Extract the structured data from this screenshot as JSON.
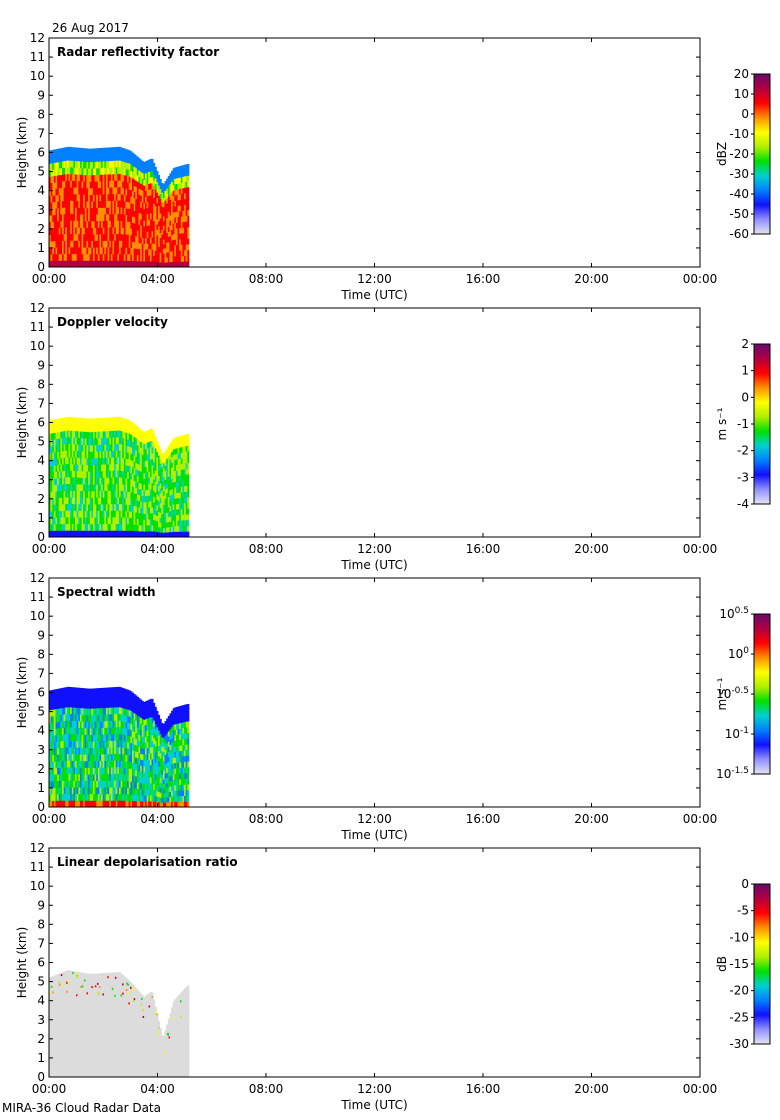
{
  "header": {
    "date": "26 Aug 2017"
  },
  "footer": {
    "caption": "MIRA-36 Cloud Radar Data"
  },
  "colors": {
    "colormap": [
      "#e4e4f2",
      "#9090ff",
      "#1010ff",
      "#0080ff",
      "#00d0d0",
      "#00e000",
      "#b0f000",
      "#ffff00",
      "#ff9000",
      "#ff0000",
      "#b00040",
      "#6a0a6a"
    ],
    "lowest_bin": "#dcdcdc"
  },
  "chart_data": [
    {
      "type": "heatmap",
      "title": "Radar reflectivity factor",
      "xlabel": "Time (UTC)",
      "ylabel": "Height (km)",
      "xlim": [
        0,
        24
      ],
      "ylim": [
        0,
        12
      ],
      "xticks": [
        "00:00",
        "04:00",
        "08:00",
        "12:00",
        "16:00",
        "20:00",
        "00:00"
      ],
      "yticks": [
        "0",
        "1",
        "2",
        "3",
        "4",
        "5",
        "6",
        "7",
        "8",
        "9",
        "10",
        "11",
        "12"
      ],
      "data_end_hour": 5.1,
      "cloud_top_km": [
        [
          0,
          6.1
        ],
        [
          0.7,
          6.3
        ],
        [
          1.5,
          6.2
        ],
        [
          2.6,
          6.3
        ],
        [
          3.0,
          6.1
        ],
        [
          3.5,
          5.5
        ],
        [
          3.8,
          5.7
        ],
        [
          4.2,
          4.3
        ],
        [
          4.6,
          5.2
        ],
        [
          5.1,
          5.4
        ]
      ],
      "colorbar": {
        "label": "dBZ",
        "ticks": [
          "20",
          "10",
          "0",
          "-10",
          "-20",
          "-30",
          "-40",
          "-50",
          "-60"
        ]
      }
    },
    {
      "type": "heatmap",
      "title": "Doppler velocity",
      "xlabel": "Time (UTC)",
      "ylabel": "Height (km)",
      "xlim": [
        0,
        24
      ],
      "ylim": [
        0,
        12
      ],
      "xticks": [
        "00:00",
        "04:00",
        "08:00",
        "12:00",
        "16:00",
        "20:00",
        "00:00"
      ],
      "yticks": [
        "0",
        "1",
        "2",
        "3",
        "4",
        "5",
        "6",
        "7",
        "8",
        "9",
        "10",
        "11",
        "12"
      ],
      "data_end_hour": 5.1,
      "cloud_top_km": [
        [
          0,
          6.1
        ],
        [
          0.7,
          6.3
        ],
        [
          1.5,
          6.2
        ],
        [
          2.6,
          6.3
        ],
        [
          3.0,
          6.1
        ],
        [
          3.5,
          5.5
        ],
        [
          3.8,
          5.7
        ],
        [
          4.2,
          4.3
        ],
        [
          4.6,
          5.2
        ],
        [
          5.1,
          5.4
        ]
      ],
      "colorbar": {
        "label": "m s⁻¹",
        "ticks": [
          "2",
          "1",
          "0",
          "-1",
          "-2",
          "-3",
          "-4"
        ]
      }
    },
    {
      "type": "heatmap",
      "title": "Spectral width",
      "xlabel": "Time (UTC)",
      "ylabel": "Height (km)",
      "xlim": [
        0,
        24
      ],
      "ylim": [
        0,
        12
      ],
      "xticks": [
        "00:00",
        "04:00",
        "08:00",
        "12:00",
        "16:00",
        "20:00",
        "00:00"
      ],
      "yticks": [
        "0",
        "1",
        "2",
        "3",
        "4",
        "5",
        "6",
        "7",
        "8",
        "9",
        "10",
        "11",
        "12"
      ],
      "data_end_hour": 5.1,
      "cloud_top_km": [
        [
          0,
          6.1
        ],
        [
          0.7,
          6.3
        ],
        [
          1.5,
          6.2
        ],
        [
          2.6,
          6.3
        ],
        [
          3.0,
          6.1
        ],
        [
          3.5,
          5.5
        ],
        [
          3.8,
          5.7
        ],
        [
          4.2,
          4.3
        ],
        [
          4.6,
          5.2
        ],
        [
          5.1,
          5.4
        ]
      ],
      "colorbar": {
        "label": "m s⁻¹",
        "ticks": [
          "10^0.5",
          "10^0",
          "10^-0.5",
          "10^-1",
          "10^-1.5"
        ]
      }
    },
    {
      "type": "heatmap",
      "title": "Linear depolarisation ratio",
      "xlabel": "Time (UTC)",
      "ylabel": "Height (km)",
      "xlim": [
        0,
        24
      ],
      "ylim": [
        0,
        12
      ],
      "xticks": [
        "00:00",
        "04:00",
        "08:00",
        "12:00",
        "16:00",
        "20:00",
        "00:00"
      ],
      "yticks": [
        "0",
        "1",
        "2",
        "3",
        "4",
        "5",
        "6",
        "7",
        "8",
        "9",
        "10",
        "11",
        "12"
      ],
      "data_end_hour": 5.1,
      "cloud_top_km": [
        [
          0,
          5.2
        ],
        [
          0.7,
          5.6
        ],
        [
          1.5,
          5.4
        ],
        [
          2.6,
          5.5
        ],
        [
          3.0,
          5.0
        ],
        [
          3.5,
          4.2
        ],
        [
          3.8,
          4.5
        ],
        [
          4.2,
          2.0
        ],
        [
          4.6,
          4.0
        ],
        [
          5.1,
          4.8
        ]
      ],
      "colorbar": {
        "label": "dB",
        "ticks": [
          "0",
          "-5",
          "-10",
          "-15",
          "-20",
          "-25",
          "-30"
        ]
      }
    }
  ]
}
